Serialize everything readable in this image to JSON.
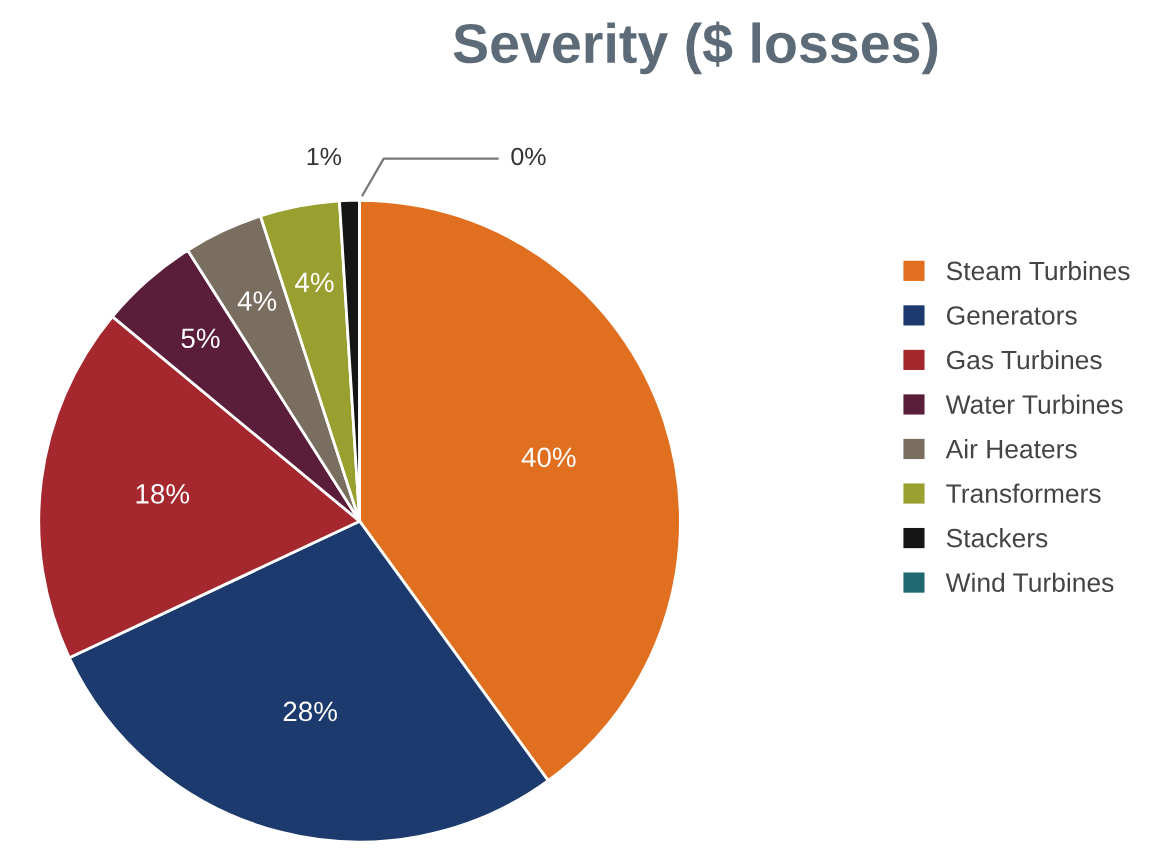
{
  "chart_data": {
    "type": "pie",
    "title": "Severity ($ losses)",
    "categories": [
      "Steam Turbines",
      "Generators",
      "Gas Turbines",
      "Water Turbines",
      "Air Heaters",
      "Transformers",
      "Stackers",
      "Wind Turbines"
    ],
    "values": [
      40,
      28,
      18,
      5,
      4,
      4,
      1,
      0
    ],
    "colors": [
      "#e07020",
      "#1c3a6e",
      "#a5282e",
      "#5a1e3a",
      "#7a6e60",
      "#9aa030",
      "#151515",
      "#1e6a70"
    ],
    "value_labels": [
      "40%",
      "28%",
      "18%",
      "5%",
      "4%",
      "4%",
      "1%",
      "0%"
    ],
    "legend": "right"
  }
}
